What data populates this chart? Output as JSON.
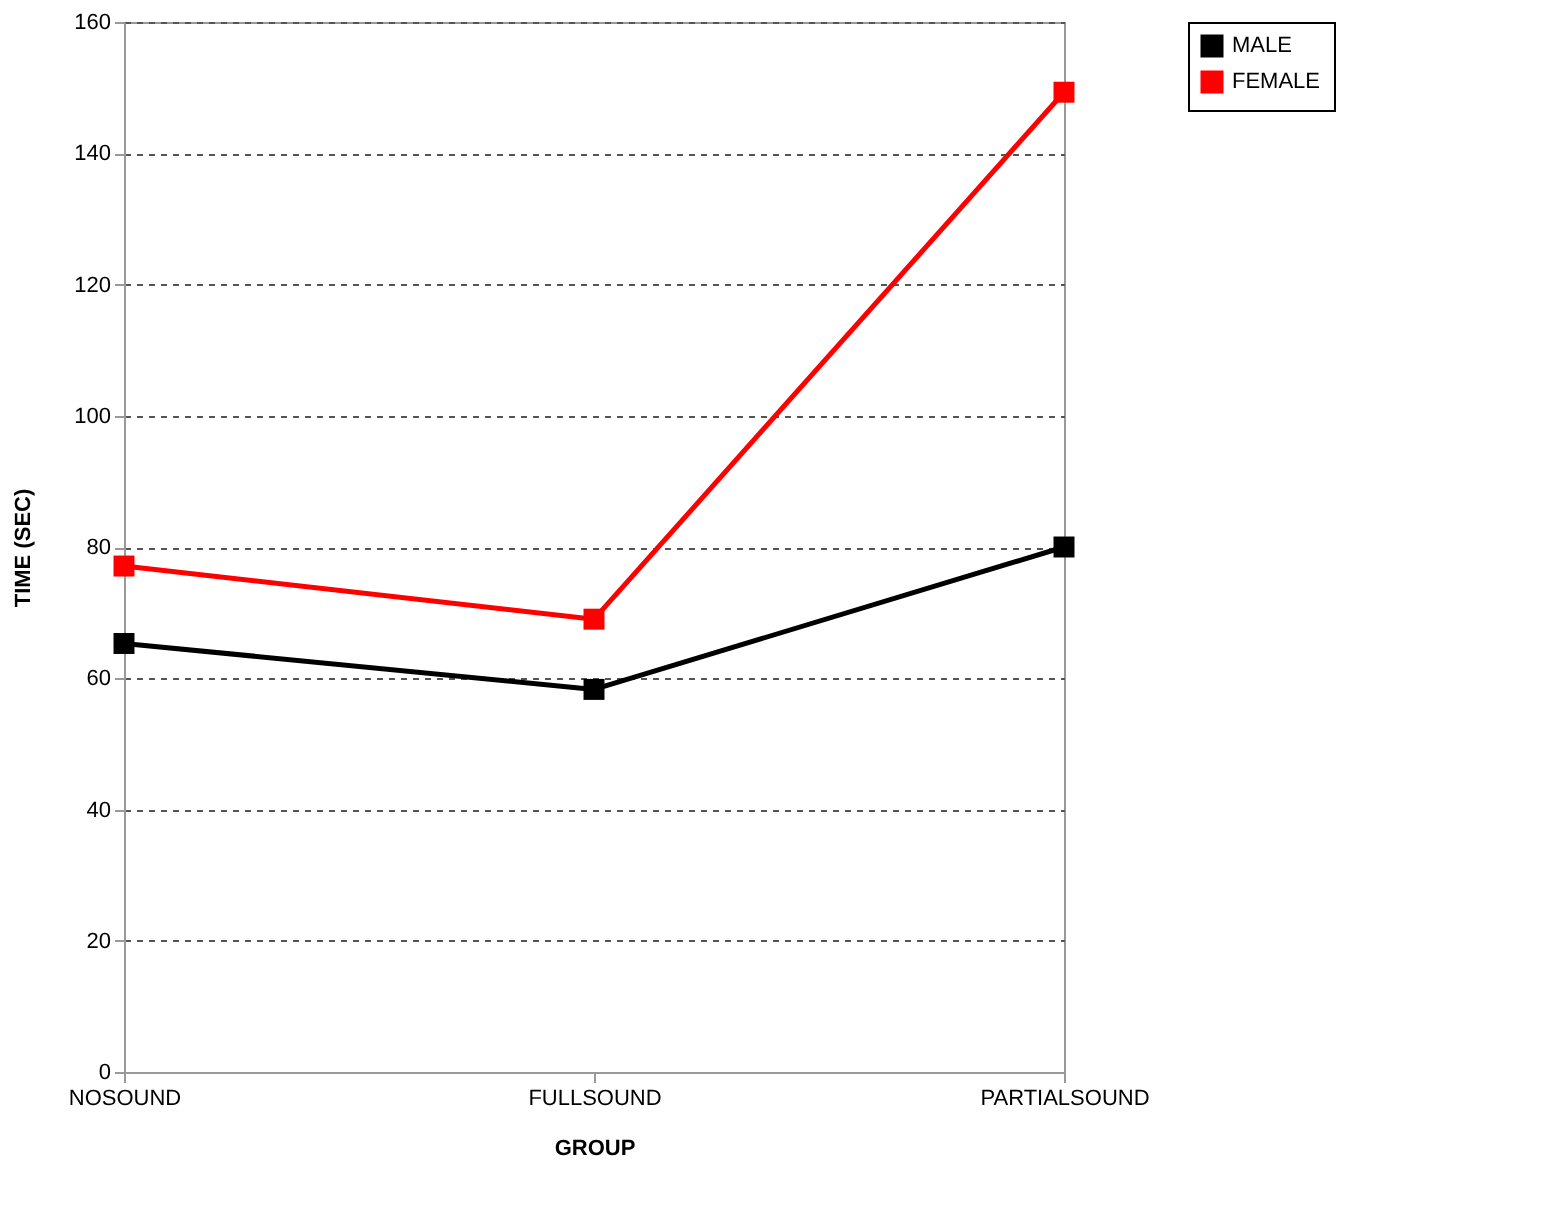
{
  "chart_data": {
    "type": "line",
    "xlabel": "GROUP",
    "ylabel": "TIME (SEC)",
    "categories": [
      "NOSOUND",
      "FULLSOUND",
      "PARTIALSOUND"
    ],
    "series": [
      {
        "name": "MALE",
        "color": "#000000",
        "values": [
          65.3,
          58.3,
          80
        ]
      },
      {
        "name": "FEMALE",
        "color": "#ff0000",
        "values": [
          77.1,
          69,
          149.3
        ]
      }
    ],
    "ylim": [
      0,
      160
    ],
    "yticks": [
      0,
      20,
      40,
      60,
      80,
      100,
      120,
      140,
      160
    ],
    "grid": "y",
    "legend": "right",
    "marker": "square",
    "line_style": "solid"
  }
}
